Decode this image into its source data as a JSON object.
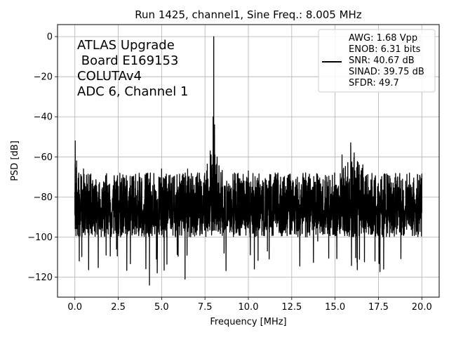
{
  "chart_data": {
    "type": "line",
    "title": "Run 1425, channel1, Sine Freq.: 8.005 MHz",
    "xlabel": "Frequency [MHz]",
    "ylabel": "PSD [dB]",
    "xlim": [
      -1.0,
      21.0
    ],
    "ylim": [
      -130,
      6
    ],
    "x_ticks": [
      0.0,
      2.5,
      5.0,
      7.5,
      10.0,
      12.5,
      15.0,
      17.5,
      20.0
    ],
    "x_tick_labels": [
      "0.0",
      "2.5",
      "5.0",
      "7.5",
      "10.0",
      "12.5",
      "15.0",
      "17.5",
      "20.0"
    ],
    "y_ticks": [
      0,
      -20,
      -40,
      -60,
      -80,
      -100,
      -120
    ],
    "y_tick_labels": [
      "0",
      "−20",
      "−40",
      "−60",
      "−80",
      "−100",
      "−120"
    ],
    "grid": true,
    "line_color": "#000000",
    "annotation_lines": [
      "ATLAS Upgrade",
      " Board E169153",
      "COLUTAv4",
      "ADC 6, Channel 1"
    ],
    "legend": {
      "placement": "upper right",
      "lines": [
        "AWG: 1.68 Vpp",
        "ENOB: 6.31 bits",
        "SNR: 40.67 dB",
        "SINAD: 39.75 dB",
        "SFDR: 49.7"
      ]
    },
    "series": [
      {
        "x_range": [
          0.0,
          20.0
        ],
        "noise_floor_db": -87,
        "noise_band_db": [
          -100,
          -68
        ],
        "points": [
          [
            0.0,
            -88
          ],
          [
            0.02,
            -52
          ],
          [
            0.06,
            -78
          ],
          [
            0.1,
            -62
          ],
          [
            0.18,
            -95
          ],
          [
            0.4,
            -102
          ],
          [
            0.5,
            -66
          ],
          [
            1.0,
            -78
          ],
          [
            1.35,
            -104
          ],
          [
            2.4,
            -106
          ],
          [
            4.3,
            -124
          ],
          [
            4.7,
            -111
          ],
          [
            5.0,
            -66
          ],
          [
            6.35,
            -121
          ],
          [
            6.5,
            -66
          ],
          [
            7.6,
            -67
          ],
          [
            7.8,
            -57
          ],
          [
            7.97,
            -40
          ],
          [
            8.005,
            0.0
          ],
          [
            8.05,
            -44
          ],
          [
            8.2,
            -63
          ],
          [
            8.6,
            -108
          ],
          [
            10.0,
            -67
          ],
          [
            11.1,
            -107
          ],
          [
            13.3,
            -68
          ],
          [
            14.0,
            -102
          ],
          [
            15.4,
            -59
          ],
          [
            15.9,
            -53
          ],
          [
            16.1,
            -58
          ],
          [
            16.6,
            -64
          ],
          [
            17.3,
            -112
          ],
          [
            17.8,
            -116
          ],
          [
            18.6,
            -70
          ],
          [
            19.9,
            -70
          ],
          [
            20.0,
            -88
          ]
        ]
      }
    ]
  }
}
